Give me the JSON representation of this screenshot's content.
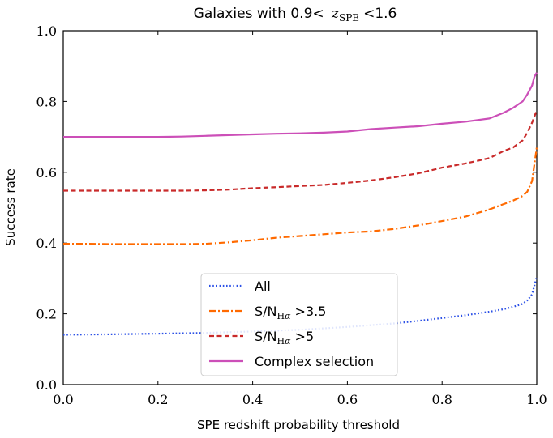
{
  "chart_data": {
    "type": "line",
    "title": "Galaxies with 0.9< z_SPE <1.6",
    "title_parts": {
      "prefix": "Galaxies with 0.9<",
      "var": "z",
      "sub": "SPE",
      "suffix": "<1.6"
    },
    "xlabel": "SPE redshift probability threshold",
    "ylabel": "Success rate",
    "xlim": [
      0.0,
      1.0
    ],
    "ylim": [
      0.0,
      1.0
    ],
    "xticks": [
      0.0,
      0.2,
      0.4,
      0.6,
      0.8,
      1.0
    ],
    "yticks": [
      0.0,
      0.2,
      0.4,
      0.6,
      0.8,
      1.0
    ],
    "xtick_labels": [
      "0.0",
      "0.2",
      "0.4",
      "0.6",
      "0.8",
      "1.0"
    ],
    "ytick_labels": [
      "0.0",
      "0.2",
      "0.4",
      "0.6",
      "0.8",
      "1.0"
    ],
    "grid": false,
    "legend_position": "bottom-center",
    "series": [
      {
        "name": "All",
        "legend_label": "All",
        "color": "#2b50e6",
        "dash": "dotted",
        "x": [
          0.0,
          0.1,
          0.2,
          0.3,
          0.4,
          0.5,
          0.6,
          0.7,
          0.75,
          0.8,
          0.85,
          0.9,
          0.93,
          0.95,
          0.97,
          0.98,
          0.99,
          1.0
        ],
        "y": [
          0.141,
          0.142,
          0.144,
          0.146,
          0.15,
          0.155,
          0.163,
          0.173,
          0.18,
          0.188,
          0.196,
          0.206,
          0.213,
          0.22,
          0.228,
          0.238,
          0.255,
          0.305
        ]
      },
      {
        "name": "S/N_Halpha >3.5",
        "legend_label": ">3.5",
        "color": "#ff6a00",
        "dash": "dashdot",
        "x": [
          0.0,
          0.05,
          0.1,
          0.15,
          0.2,
          0.25,
          0.3,
          0.35,
          0.4,
          0.45,
          0.5,
          0.55,
          0.6,
          0.65,
          0.7,
          0.75,
          0.8,
          0.85,
          0.9,
          0.93,
          0.95,
          0.97,
          0.98,
          0.99,
          1.0
        ],
        "y": [
          0.398,
          0.398,
          0.397,
          0.397,
          0.397,
          0.397,
          0.398,
          0.402,
          0.408,
          0.415,
          0.42,
          0.425,
          0.43,
          0.433,
          0.44,
          0.45,
          0.462,
          0.475,
          0.495,
          0.51,
          0.52,
          0.533,
          0.545,
          0.575,
          0.67
        ]
      },
      {
        "name": "S/N_Halpha >5",
        "legend_label": ">5",
        "color": "#c92a2a",
        "dash": "dashed",
        "x": [
          0.0,
          0.05,
          0.1,
          0.15,
          0.2,
          0.25,
          0.3,
          0.35,
          0.4,
          0.45,
          0.5,
          0.55,
          0.6,
          0.65,
          0.7,
          0.75,
          0.8,
          0.85,
          0.9,
          0.93,
          0.95,
          0.97,
          0.98,
          0.99,
          1.0
        ],
        "y": [
          0.548,
          0.548,
          0.548,
          0.548,
          0.548,
          0.548,
          0.549,
          0.551,
          0.555,
          0.558,
          0.561,
          0.564,
          0.57,
          0.577,
          0.586,
          0.597,
          0.613,
          0.625,
          0.64,
          0.66,
          0.67,
          0.69,
          0.712,
          0.74,
          0.775
        ]
      },
      {
        "name": "Complex selection",
        "legend_label": "Complex selection",
        "color": "#cc4fb8",
        "dash": "solid",
        "x": [
          0.0,
          0.05,
          0.1,
          0.15,
          0.2,
          0.25,
          0.3,
          0.35,
          0.4,
          0.45,
          0.5,
          0.55,
          0.6,
          0.65,
          0.7,
          0.75,
          0.8,
          0.85,
          0.9,
          0.93,
          0.95,
          0.97,
          0.98,
          0.99,
          0.995,
          1.0
        ],
        "y": [
          0.7,
          0.7,
          0.7,
          0.7,
          0.7,
          0.701,
          0.703,
          0.705,
          0.707,
          0.709,
          0.71,
          0.712,
          0.715,
          0.722,
          0.726,
          0.73,
          0.737,
          0.743,
          0.752,
          0.768,
          0.782,
          0.8,
          0.82,
          0.845,
          0.87,
          0.882
        ]
      }
    ]
  }
}
